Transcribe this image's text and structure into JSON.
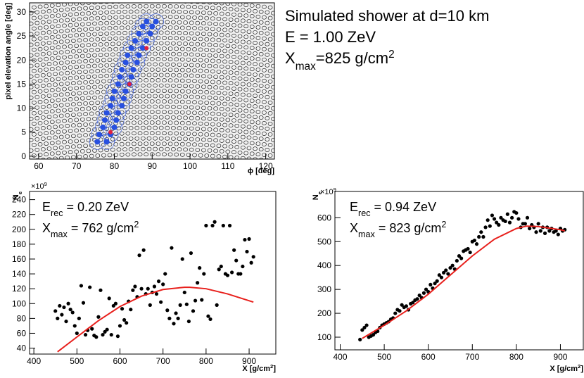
{
  "chart_data": [
    {
      "type": "scatter",
      "pixel_grid": true,
      "background": "#f1f1f1",
      "xlim": [
        57.6,
        122.3
      ],
      "ylim": [
        -0.6,
        31.9
      ],
      "xticks": [
        60,
        70,
        80,
        90,
        100,
        110,
        120
      ],
      "yticks": [
        0,
        5,
        10,
        15,
        20,
        25,
        30
      ],
      "xlabel": [
        {
          "text": "ϕ [deg]"
        }
      ],
      "ylabel": [
        {
          "text": "pixel elevation angle [deg]"
        }
      ],
      "annotations": [
        [
          {
            "text": "Simulated shower at d=10 km"
          }
        ],
        [
          {
            "text": "E = 1.00 ZeV"
          }
        ],
        [
          {
            "text": "X"
          },
          {
            "text": "max",
            "shift": "sub"
          },
          {
            "text": "=825 g/cm"
          },
          {
            "text": "2",
            "shift": "sup"
          }
        ]
      ],
      "series": [
        {
          "color": "#2850e0",
          "size": 4,
          "halo": 11,
          "x": [
            75.5,
            78,
            76,
            79,
            77,
            80,
            77.5,
            80.5,
            78,
            81,
            79,
            82,
            79.5,
            82.5,
            80,
            83,
            81,
            84,
            81.5,
            84.5,
            82,
            85,
            83,
            86,
            83.5,
            86.5,
            84.5,
            87.5,
            85.5,
            88.5,
            86.5,
            89.5,
            87.5,
            90,
            88.5,
            91
          ],
          "values": [
            3,
            3,
            4.5,
            4.5,
            6,
            6,
            7.5,
            7.5,
            9,
            9,
            10.5,
            10.5,
            12,
            12,
            13.5,
            13.5,
            15,
            15,
            16.5,
            16.5,
            18,
            18,
            19.5,
            19.5,
            21,
            21,
            22.5,
            22.5,
            24,
            24,
            25.5,
            25.5,
            27,
            27,
            28,
            28
          ]
        },
        {
          "color": "#e02040",
          "size": 3,
          "x": [
            79,
            84,
            88.5
          ],
          "values": [
            5,
            15,
            22.5
          ]
        }
      ]
    },
    {
      "type": "scatter",
      "background": "#ffffff",
      "xlim": [
        390,
        962
      ],
      "ylim": [
        32,
        251
      ],
      "xticks": [
        400,
        500,
        600,
        700,
        800,
        900
      ],
      "yticks": [
        40,
        60,
        80,
        100,
        120,
        140,
        160,
        180,
        200,
        220,
        240
      ],
      "xlabel": [
        {
          "text": "X [g/cm"
        },
        {
          "text": "2",
          "shift": "sup"
        },
        {
          "text": "]"
        }
      ],
      "ylabel": [
        {
          "text": "N"
        },
        {
          "text": "e",
          "shift": "sub"
        }
      ],
      "multiplier": [
        {
          "text": "×10"
        },
        {
          "text": "9",
          "shift": "sup"
        }
      ],
      "annotations": [
        [
          {
            "text": "E"
          },
          {
            "text": "rec",
            "shift": "sub"
          },
          {
            "text": " = 0.20 ZeV"
          }
        ],
        [
          {
            "text": "X"
          },
          {
            "text": "max",
            "shift": "sub"
          },
          {
            "text": " = 762 g/cm"
          },
          {
            "text": "2",
            "shift": "sup"
          }
        ]
      ],
      "series": [
        {
          "color": "#000000",
          "size": 2.6,
          "x": [
            450,
            455,
            460,
            465,
            470,
            475,
            480,
            485,
            490,
            495,
            500,
            505,
            510,
            515,
            520,
            525,
            530,
            535,
            540,
            545,
            550,
            555,
            560,
            565,
            570,
            575,
            580,
            585,
            590,
            595,
            600,
            605,
            610,
            615,
            620,
            625,
            630,
            635,
            640,
            645,
            650,
            655,
            660,
            665,
            670,
            675,
            680,
            685,
            690,
            695,
            700,
            705,
            710,
            715,
            720,
            725,
            730,
            735,
            740,
            745,
            750,
            755,
            760,
            765,
            770,
            775,
            780,
            785,
            790,
            795,
            800,
            805,
            810,
            815,
            820,
            825,
            830,
            835,
            840,
            845,
            850,
            855,
            860,
            865,
            870,
            875,
            880,
            885,
            890,
            895,
            900,
            905,
            910
          ],
          "values": [
            90,
            80,
            97,
            85,
            95,
            76,
            100,
            92,
            88,
            70,
            60,
            80,
            124,
            101,
            58,
            64,
            122,
            66,
            57,
            55,
            82,
            118,
            58,
            62,
            65,
            107,
            58,
            97,
            100,
            56,
            70,
            93,
            78,
            74,
            103,
            92,
            118,
            123,
            109,
            165,
            120,
            172,
            113,
            120,
            98,
            115,
            123,
            113,
            130,
            102,
            126,
            140,
            91,
            80,
            175,
            73,
            87,
            80,
            98,
            160,
            115,
            99,
            76,
            168,
            90,
            104,
            128,
            148,
            105,
            140,
            205,
            83,
            79,
            205,
            210,
            98,
            146,
            150,
            205,
            140,
            138,
            205,
            142,
            172,
            158,
            140,
            140,
            150,
            186,
            170,
            187,
            155,
            163
          ]
        },
        {
          "style": "line",
          "color": "#e8201c",
          "width": 2,
          "x": [
            455,
            500,
            550,
            600,
            650,
            700,
            750,
            762,
            800,
            850,
            910
          ],
          "values": [
            35,
            55,
            77,
            96,
            110,
            119,
            122,
            122,
            120,
            113,
            102
          ]
        }
      ]
    },
    {
      "type": "scatter",
      "background": "#ffffff",
      "xlim": [
        388,
        952
      ],
      "ylim": [
        47,
        710
      ],
      "xticks": [
        400,
        500,
        600,
        700,
        800,
        900
      ],
      "yticks": [
        100,
        200,
        300,
        400,
        500,
        600
      ],
      "xlabel": [
        {
          "text": "X [g/cm"
        },
        {
          "text": "2",
          "shift": "sup"
        },
        {
          "text": "]"
        }
      ],
      "ylabel": [
        {
          "text": "N"
        },
        {
          "text": "e",
          "shift": "sub"
        }
      ],
      "multiplier": [
        {
          "text": "×10"
        },
        {
          "text": "9",
          "shift": "sup"
        }
      ],
      "annotations": [
        [
          {
            "text": "E"
          },
          {
            "text": "rec",
            "shift": "sub"
          },
          {
            "text": " = 0.94 ZeV"
          }
        ],
        [
          {
            "text": "X"
          },
          {
            "text": "max",
            "shift": "sub"
          },
          {
            "text": " = 823 g/cm"
          },
          {
            "text": "2",
            "shift": "sup"
          }
        ]
      ],
      "series": [
        {
          "color": "#000000",
          "size": 2.6,
          "x": [
            445,
            450,
            455,
            460,
            465,
            470,
            475,
            480,
            485,
            490,
            495,
            500,
            505,
            510,
            515,
            520,
            525,
            530,
            535,
            540,
            545,
            550,
            555,
            560,
            565,
            570,
            575,
            580,
            585,
            590,
            595,
            600,
            605,
            610,
            615,
            620,
            625,
            630,
            635,
            640,
            645,
            650,
            655,
            660,
            665,
            670,
            675,
            680,
            685,
            690,
            695,
            700,
            705,
            710,
            715,
            720,
            725,
            730,
            735,
            740,
            745,
            750,
            755,
            760,
            765,
            770,
            775,
            780,
            785,
            790,
            795,
            800,
            805,
            810,
            815,
            820,
            825,
            830,
            835,
            840,
            845,
            850,
            855,
            860,
            865,
            870,
            875,
            880,
            885,
            890,
            895,
            900,
            905,
            910
          ],
          "values": [
            90,
            130,
            140,
            150,
            100,
            105,
            110,
            120,
            125,
            140,
            150,
            155,
            160,
            165,
            175,
            180,
            200,
            215,
            210,
            235,
            225,
            230,
            215,
            240,
            245,
            255,
            260,
            275,
            265,
            285,
            300,
            290,
            320,
            305,
            325,
            335,
            360,
            350,
            370,
            380,
            365,
            390,
            400,
            385,
            420,
            440,
            430,
            460,
            465,
            470,
            455,
            500,
            505,
            490,
            520,
            540,
            520,
            560,
            590,
            565,
            610,
            595,
            580,
            570,
            600,
            590,
            585,
            615,
            580,
            600,
            625,
            620,
            595,
            560,
            575,
            575,
            600,
            555,
            570,
            560,
            540,
            575,
            545,
            560,
            535,
            560,
            545,
            555,
            540,
            545,
            530,
            555,
            545,
            550
          ]
        },
        {
          "style": "line",
          "color": "#e8201c",
          "width": 2,
          "x": [
            450,
            500,
            550,
            600,
            650,
            700,
            750,
            800,
            823,
            850,
            900,
            910
          ],
          "values": [
            95,
            150,
            210,
            280,
            360,
            440,
            510,
            555,
            565,
            563,
            550,
            545
          ]
        }
      ]
    }
  ]
}
